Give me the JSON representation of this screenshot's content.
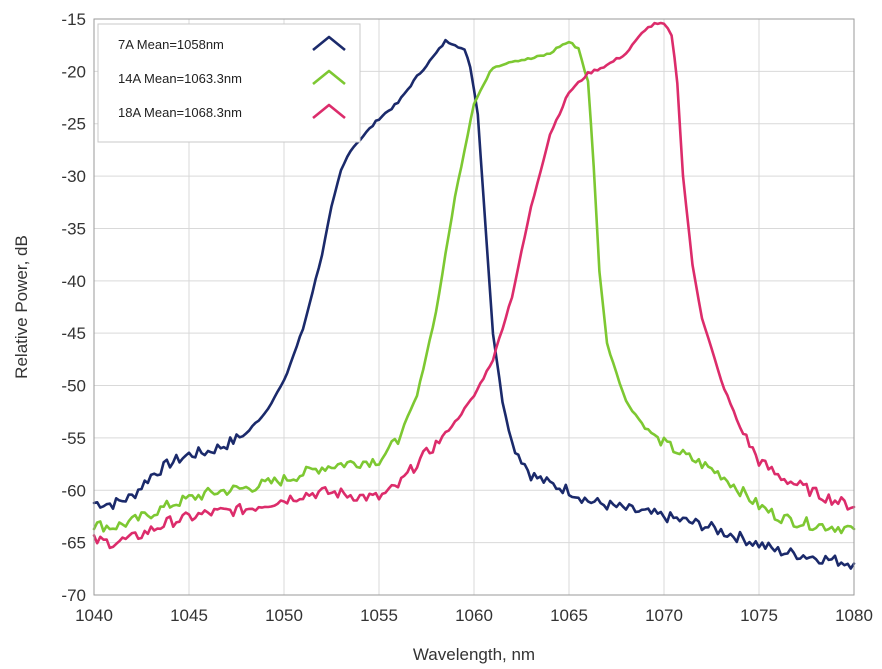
{
  "chart_data": {
    "type": "line",
    "title": "",
    "xlabel": "Wavelength, nm",
    "ylabel": "Relative Power, dB",
    "xlim": [
      1040,
      1080
    ],
    "ylim": [
      -70,
      -15
    ],
    "xticks": [
      1040,
      1045,
      1050,
      1055,
      1060,
      1065,
      1070,
      1075,
      1080
    ],
    "yticks": [
      -15,
      -20,
      -25,
      -30,
      -35,
      -40,
      -45,
      -50,
      -55,
      -60,
      -65,
      -70
    ],
    "grid": true,
    "legend_position": "top-left",
    "series": [
      {
        "name": "7A Mean=1058nm",
        "color": "#1b2a6b",
        "x": [
          1040,
          1041,
          1042,
          1043,
          1044,
          1045,
          1046,
          1047,
          1048,
          1049,
          1050,
          1051,
          1052,
          1052.5,
          1053,
          1053.5,
          1054,
          1055,
          1056,
          1057,
          1058,
          1058.5,
          1059,
          1059.5,
          1059.8,
          1060.2,
          1060.5,
          1061,
          1061.5,
          1062,
          1063,
          1064,
          1065,
          1066,
          1068,
          1070,
          1072,
          1074,
          1076,
          1078,
          1080
        ],
        "y": [
          -61.2,
          -61.3,
          -60.6,
          -58.6,
          -57.4,
          -56.6,
          -56.3,
          -55.6,
          -54.6,
          -52.6,
          -49.6,
          -44.6,
          -37.5,
          -33.0,
          -29.5,
          -27.5,
          -26.5,
          -24.5,
          -23.0,
          -20.5,
          -18.3,
          -17.1,
          -17.4,
          -18.0,
          -19.5,
          -24.0,
          -32.0,
          -45.0,
          -51.5,
          -55.5,
          -58.5,
          -59.4,
          -60.0,
          -61.0,
          -61.8,
          -62.5,
          -63.3,
          -64.5,
          -65.8,
          -66.4,
          -67.0
        ]
      },
      {
        "name": "14A Mean=1063.3nm",
        "color": "#7dc832",
        "x": [
          1040,
          1041,
          1042,
          1043,
          1044,
          1045,
          1046,
          1047,
          1048,
          1049,
          1050,
          1051,
          1052,
          1053,
          1054,
          1055,
          1056,
          1057,
          1058,
          1059,
          1060,
          1061,
          1062,
          1063,
          1064,
          1064.5,
          1065,
          1065.5,
          1066,
          1066.3,
          1066.6,
          1067,
          1068,
          1069,
          1070,
          1071,
          1072,
          1073,
          1074,
          1075,
          1076,
          1077,
          1078,
          1080
        ],
        "y": [
          -63.3,
          -63.5,
          -63.0,
          -62.2,
          -61.4,
          -60.8,
          -60.3,
          -60.0,
          -59.8,
          -59.4,
          -59.0,
          -58.4,
          -57.8,
          -57.5,
          -57.3,
          -57.1,
          -55.2,
          -51.0,
          -43.0,
          -32.0,
          -23.0,
          -19.6,
          -19.0,
          -18.8,
          -18.3,
          -17.6,
          -17.2,
          -17.8,
          -21.0,
          -29.0,
          -39.0,
          -46.0,
          -51.5,
          -54.0,
          -55.5,
          -56.6,
          -57.5,
          -58.5,
          -60.0,
          -61.5,
          -62.5,
          -63.0,
          -63.3,
          -63.7
        ]
      },
      {
        "name": "18A Mean=1068.3nm",
        "color": "#dc2c6b",
        "x": [
          1040,
          1041,
          1042,
          1043,
          1044,
          1045,
          1046,
          1047,
          1048,
          1049,
          1050,
          1051,
          1052,
          1053,
          1054,
          1055,
          1056,
          1057,
          1058,
          1059,
          1060,
          1061,
          1062,
          1063,
          1064,
          1065,
          1066,
          1067,
          1068,
          1069,
          1069.5,
          1070,
          1070.4,
          1070.7,
          1071,
          1071.5,
          1072,
          1073,
          1074,
          1075,
          1076,
          1078,
          1080
        ],
        "y": [
          -64.8,
          -65.0,
          -64.6,
          -63.8,
          -63.0,
          -62.6,
          -62.2,
          -62.0,
          -61.8,
          -61.3,
          -60.9,
          -60.4,
          -60.2,
          -60.3,
          -60.6,
          -60.7,
          -59.6,
          -57.4,
          -55.6,
          -53.5,
          -51.0,
          -47.5,
          -41.5,
          -33.0,
          -26.0,
          -22.0,
          -20.2,
          -19.4,
          -18.3,
          -16.0,
          -15.5,
          -15.5,
          -16.5,
          -21.0,
          -30.0,
          -38.5,
          -43.5,
          -49.5,
          -54.0,
          -57.2,
          -58.6,
          -60.3,
          -61.6
        ]
      }
    ]
  }
}
